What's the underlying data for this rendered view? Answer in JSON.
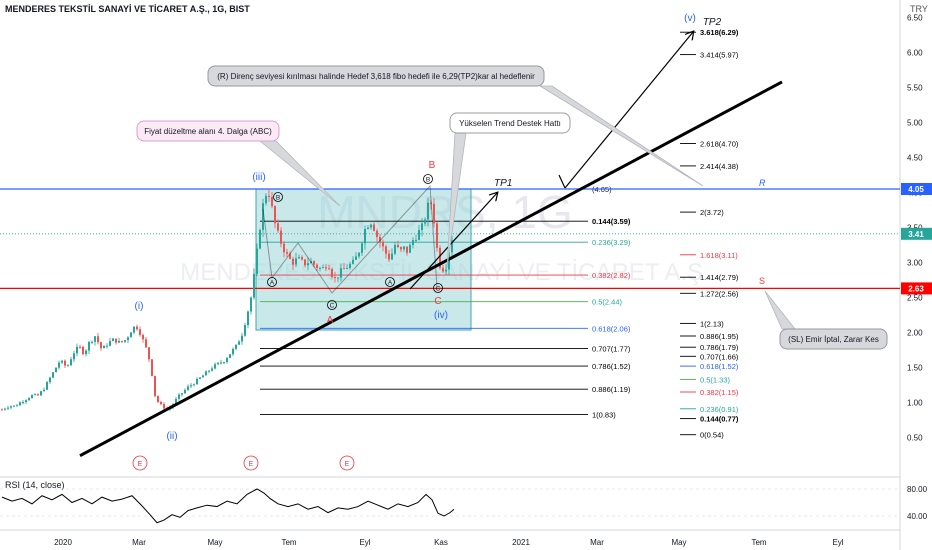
{
  "header": {
    "symbol_title": "MENDERES TEKSTİL SANAYİ VE TİCARET A.Ş., 1G, BIST",
    "currency": "TRY"
  },
  "watermark": {
    "ticker": "MNDRS, 1G",
    "name": "MENDERES TEKSTİL SANAYİ VE TİCARET A.Ş."
  },
  "colors": {
    "up": "#26a69a",
    "down": "#ef5350",
    "resistance": "#2962ff",
    "support": "#ff0000",
    "wave_blue": "#2962ff",
    "wave_red": "#f23645",
    "box_fill": "#9bd5d8",
    "box_stroke": "#3fa9a8",
    "current_price_label": "#26a69a"
  },
  "chart_data": [
    {
      "type": "line",
      "title": "MENDERES TEKSTİL SANAYİ VE TİCARET A.Ş., 1G, BIST",
      "ylabel": "TRY",
      "ylim": [
        0.22,
        6.69
      ],
      "price_ticks": [
        "6.50",
        "6.00",
        "5.50",
        "5.00",
        "4.50",
        "4.00",
        "3.50",
        "3.00",
        "2.50",
        "2.00",
        "1.50",
        "1.00",
        "0.50"
      ],
      "time_ticks": [
        "2020",
        "Mar",
        "May",
        "Tem",
        "Eyl",
        "Kas",
        "2021",
        "Mar",
        "May",
        "Tem",
        "Eyl"
      ],
      "series": [
        {
          "name": "MNDRS close (approx.)",
          "points": [
            [
              0,
              0.9
            ],
            [
              7,
              0.95
            ],
            [
              13,
              0.95
            ],
            [
              18,
              1.0
            ],
            [
              24,
              1.05
            ],
            [
              30,
              1.1
            ],
            [
              36,
              1.1
            ],
            [
              42,
              1.2
            ],
            [
              48,
              1.35
            ],
            [
              52,
              1.45
            ],
            [
              58,
              1.6
            ],
            [
              65,
              1.5
            ],
            [
              71,
              1.7
            ],
            [
              77,
              1.8
            ],
            [
              82,
              1.7
            ],
            [
              87,
              1.85
            ],
            [
              93,
              1.95
            ],
            [
              100,
              1.75
            ],
            [
              106,
              1.85
            ],
            [
              112,
              1.9
            ],
            [
              118,
              1.85
            ],
            [
              124,
              1.9
            ],
            [
              130,
              2.05
            ],
            [
              134,
              2.1
            ],
            [
              138,
              2.0
            ],
            [
              142,
              1.85
            ],
            [
              146,
              1.7
            ],
            [
              150,
              1.4
            ],
            [
              153,
              1.1
            ],
            [
              157,
              0.98
            ],
            [
              162,
              0.93
            ],
            [
              166,
              0.9
            ],
            [
              171,
              0.98
            ],
            [
              176,
              1.08
            ],
            [
              181,
              1.15
            ],
            [
              186,
              1.22
            ],
            [
              192,
              1.28
            ],
            [
              198,
              1.35
            ],
            [
              204,
              1.42
            ],
            [
              210,
              1.5
            ],
            [
              216,
              1.55
            ],
            [
              222,
              1.6
            ],
            [
              228,
              1.7
            ],
            [
              234,
              1.8
            ],
            [
              240,
              1.98
            ],
            [
              245,
              2.25
            ],
            [
              249,
              2.5
            ],
            [
              253,
              2.9
            ],
            [
              257,
              3.4
            ],
            [
              260,
              3.75
            ],
            [
              263,
              3.95
            ],
            [
              266,
              4.05
            ],
            [
              269,
              3.85
            ],
            [
              272,
              3.6
            ],
            [
              276,
              3.4
            ],
            [
              280,
              3.25
            ],
            [
              285,
              3.1
            ],
            [
              290,
              3.0
            ],
            [
              296,
              3.05
            ],
            [
              302,
              2.98
            ],
            [
              308,
              3.02
            ],
            [
              314,
              2.95
            ],
            [
              320,
              2.9
            ],
            [
              326,
              3.0
            ],
            [
              332,
              2.75
            ],
            [
              336,
              2.82
            ],
            [
              341,
              2.9
            ],
            [
              346,
              2.95
            ],
            [
              352,
              3.0
            ],
            [
              358,
              3.2
            ],
            [
              362,
              3.45
            ],
            [
              366,
              3.55
            ],
            [
              370,
              3.6
            ],
            [
              374,
              3.4
            ],
            [
              378,
              3.3
            ],
            [
              383,
              3.15
            ],
            [
              388,
              3.05
            ],
            [
              393,
              3.25
            ],
            [
              398,
              3.15
            ],
            [
              402,
              3.2
            ],
            [
              406,
              3.15
            ],
            [
              410,
              3.3
            ],
            [
              415,
              3.4
            ],
            [
              420,
              3.5
            ],
            [
              424,
              3.7
            ],
            [
              428,
              3.9
            ],
            [
              431,
              3.75
            ],
            [
              434,
              3.3
            ],
            [
              437,
              3.0
            ],
            [
              440,
              2.9
            ],
            [
              444,
              2.95
            ],
            [
              448,
              3.25
            ],
            [
              452,
              3.45
            ]
          ]
        },
        {
          "name": "Yükselen Trend Destek Hattı",
          "points": [
            [
              80,
              0.24
            ],
            [
              782,
              5.58
            ]
          ]
        }
      ],
      "horizontal_levels": [
        {
          "name": "R",
          "price": 4.05,
          "label": "4.05",
          "color": "resistance"
        },
        {
          "name": "S",
          "price": 2.63,
          "label": "2.63",
          "color": "support"
        }
      ],
      "current_price": {
        "price": 3.41,
        "label": "3.41"
      },
      "fib_retracement_1": [
        {
          "ratio": "0.144",
          "price": 3.59,
          "label": "0.144(3.59)"
        },
        {
          "ratio": "0.236",
          "price": 3.29,
          "label": "0.236(3.29)"
        },
        {
          "ratio": "0.382",
          "price": 2.82,
          "label": "0.382(2.82)"
        },
        {
          "ratio": "0.5",
          "price": 2.44,
          "label": "0.5(2.44)"
        },
        {
          "ratio": "0.618",
          "price": 2.06,
          "label": "0.618(2.06)"
        },
        {
          "ratio": "0.707",
          "price": 1.77,
          "label": "0.707(1.77)"
        },
        {
          "ratio": "0.786",
          "price": 1.52,
          "label": "0.786(1.52)"
        },
        {
          "ratio": "0.886",
          "price": 1.19,
          "label": "0.886(1.19)"
        },
        {
          "ratio": "1",
          "price": 0.83,
          "label": "1(0.83)"
        }
      ],
      "fib_extension_2": [
        {
          "ratio": "3.618",
          "price": 6.29,
          "label": "3.618(6.29)"
        },
        {
          "ratio": "3.414",
          "price": 5.97,
          "label": "3.414(5.97)"
        },
        {
          "ratio": "2.618",
          "price": 4.7,
          "label": "2.618(4.70)"
        },
        {
          "ratio": "2.414",
          "price": 4.38,
          "label": "2.414(4.38)"
        },
        {
          "ratio": "2",
          "price": 3.72,
          "label": "2(3.72)"
        },
        {
          "ratio": "1.618",
          "price": 3.11,
          "label": "1.618(3.11)"
        },
        {
          "ratio": "1.414",
          "price": 2.79,
          "label": "1.414(2.79)"
        },
        {
          "ratio": "1.272",
          "price": 2.56,
          "label": "1.272(2.56)"
        },
        {
          "ratio": "1",
          "price": 2.13,
          "label": "1(2.13)"
        },
        {
          "ratio": "0.886",
          "price": 1.95,
          "label": "0.886(1.95)"
        },
        {
          "ratio": "0.786",
          "price": 1.79,
          "label": "0.786(1.79)"
        },
        {
          "ratio": "0.707",
          "price": 1.66,
          "label": "0.707(1.66)"
        },
        {
          "ratio": "0.618",
          "price": 1.52,
          "label": "0.618(1.52)"
        },
        {
          "ratio": "0.5",
          "price": 1.33,
          "label": "0.5(1.33)"
        },
        {
          "ratio": "0.382",
          "price": 1.15,
          "label": "0.382(1.15)"
        },
        {
          "ratio": "0.236",
          "price": 0.91,
          "label": "0.236(0.91)"
        },
        {
          "ratio": "0.144",
          "price": 0.77,
          "label": "0.144(0.77)"
        },
        {
          "ratio": "0",
          "price": 0.54,
          "label": "0(0.54)"
        }
      ],
      "fib_4_05_label": "(4.05)",
      "wave_labels": [
        {
          "text": "(i)",
          "color": "wave_blue"
        },
        {
          "text": "(ii)",
          "color": "wave_blue"
        },
        {
          "text": "(iii)",
          "color": "wave_blue"
        },
        {
          "text": "(iv)",
          "color": "wave_blue"
        },
        {
          "text": "(v)",
          "color": "wave_blue"
        },
        {
          "text": "A",
          "color": "wave_red"
        },
        {
          "text": "B",
          "color": "wave_red"
        },
        {
          "text": "C",
          "color": "wave_red"
        }
      ],
      "circled_labels": [
        "A",
        "B",
        "C",
        "A",
        "B",
        "C"
      ],
      "event_markers": [
        "E",
        "E",
        "E"
      ],
      "targets": [
        "TP1",
        "TP2"
      ],
      "level_letters": [
        "R",
        "S"
      ],
      "annotations": [
        "Fiyat düzeltme alanı 4. Dalga (ABC)",
        "Yükselen Trend Destek  Hattı",
        "(R) Direnç seviyesi kırılması halinde Hedef 3,618 fibo hedefi ile 6,29(TP2)kar al hedeflenir",
        "(SL) Emir İptal, Zarar Kes"
      ]
    },
    {
      "type": "line",
      "title": "RSI (14, close)",
      "ylim": [
        20,
        100
      ],
      "y_ticks": [
        "80.00",
        "40.00"
      ],
      "series": [
        {
          "name": "RSI",
          "points": [
            [
              0,
              68
            ],
            [
              10,
              62
            ],
            [
              20,
              66
            ],
            [
              30,
              58
            ],
            [
              40,
              70
            ],
            [
              50,
              64
            ],
            [
              60,
              72
            ],
            [
              70,
              60
            ],
            [
              80,
              66
            ],
            [
              90,
              58
            ],
            [
              100,
              68
            ],
            [
              110,
              62
            ],
            [
              120,
              65
            ],
            [
              130,
              70
            ],
            [
              140,
              55
            ],
            [
              148,
              42
            ],
            [
              155,
              30
            ],
            [
              162,
              34
            ],
            [
              170,
              42
            ],
            [
              178,
              38
            ],
            [
              186,
              48
            ],
            [
              195,
              52
            ],
            [
              205,
              56
            ],
            [
              215,
              54
            ],
            [
              225,
              62
            ],
            [
              235,
              58
            ],
            [
              245,
              72
            ],
            [
              255,
              80
            ],
            [
              262,
              74
            ],
            [
              268,
              66
            ],
            [
              276,
              58
            ],
            [
              286,
              54
            ],
            [
              296,
              58
            ],
            [
              306,
              50
            ],
            [
              316,
              54
            ],
            [
              326,
              45
            ],
            [
              336,
              52
            ],
            [
              346,
              50
            ],
            [
              356,
              54
            ],
            [
              366,
              62
            ],
            [
              376,
              56
            ],
            [
              386,
              50
            ],
            [
              396,
              58
            ],
            [
              406,
              54
            ],
            [
              416,
              60
            ],
            [
              424,
              72
            ],
            [
              430,
              64
            ],
            [
              436,
              44
            ],
            [
              442,
              40
            ],
            [
              448,
              45
            ],
            [
              452,
              50
            ]
          ]
        }
      ]
    }
  ]
}
